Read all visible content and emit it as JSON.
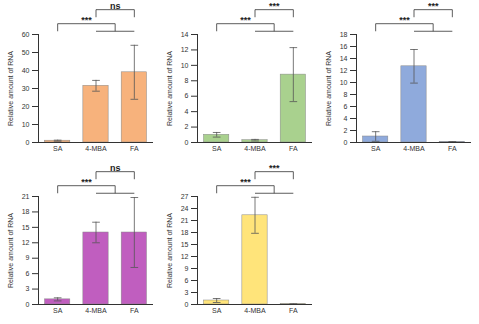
{
  "chart_data": [
    {
      "type": "bar",
      "y_label": "Relative amount of RNA",
      "categories": [
        "SA",
        "4-MBA",
        "FA"
      ],
      "values": [
        1,
        31.5,
        39
      ],
      "errors": [
        0.3,
        3,
        15
      ],
      "color": "#f7b27c",
      "ylim": [
        0,
        60
      ],
      "yticks": [
        0,
        10,
        20,
        30,
        40,
        50,
        60
      ],
      "significance": [
        {
          "between": [
            [
              "SA"
            ],
            [
              "4-MBA",
              "FA"
            ]
          ],
          "label": "***"
        },
        {
          "between": [
            [
              "4-MBA"
            ],
            [
              "FA"
            ]
          ],
          "label": "ns"
        }
      ]
    },
    {
      "type": "bar",
      "y_label": "Relative amount of RNA",
      "categories": [
        "SA",
        "4-MBA",
        "FA"
      ],
      "values": [
        1,
        0.3,
        8.8
      ],
      "errors": [
        0.3,
        0.1,
        3.5
      ],
      "color": "#a9d18e",
      "ylim": [
        0,
        14
      ],
      "yticks": [
        0,
        2,
        4,
        6,
        8,
        10,
        12,
        14
      ],
      "significance": [
        {
          "between": [
            [
              "SA"
            ],
            [
              "4-MBA",
              "FA"
            ]
          ],
          "label": "***"
        },
        {
          "between": [
            [
              "4-MBA"
            ],
            [
              "FA"
            ]
          ],
          "label": "***"
        }
      ]
    },
    {
      "type": "bar",
      "y_label": "Relative amount of RNA",
      "categories": [
        "SA",
        "4-MBA",
        "FA"
      ],
      "values": [
        1,
        12.7,
        0.1
      ],
      "errors": [
        0.8,
        2.8,
        0.05
      ],
      "color": "#8faadc",
      "ylim": [
        0,
        18
      ],
      "yticks": [
        0,
        2,
        4,
        6,
        8,
        10,
        12,
        14,
        16,
        18
      ],
      "significance": [
        {
          "between": [
            [
              "SA"
            ],
            [
              "4-MBA",
              "FA"
            ]
          ],
          "label": "***"
        },
        {
          "between": [
            [
              "4-MBA"
            ],
            [
              "FA"
            ]
          ],
          "label": "***"
        }
      ]
    },
    {
      "type": "bar",
      "y_label": "Relative amount of RNA",
      "categories": [
        "SA",
        "4-MBA",
        "FA"
      ],
      "values": [
        1,
        14,
        14
      ],
      "errors": [
        0.3,
        2,
        6.8
      ],
      "color": "#c05ebf",
      "ylim": [
        0,
        21
      ],
      "yticks": [
        0,
        3,
        6,
        9,
        12,
        15,
        18,
        21
      ],
      "significance": [
        {
          "between": [
            [
              "SA"
            ],
            [
              "4-MBA",
              "FA"
            ]
          ],
          "label": "***"
        },
        {
          "between": [
            [
              "4-MBA"
            ],
            [
              "FA"
            ]
          ],
          "label": "ns"
        }
      ]
    },
    {
      "type": "bar",
      "y_label": "Relative amount of RNA",
      "categories": [
        "SA",
        "4-MBA",
        "FA"
      ],
      "values": [
        1,
        22.3,
        0.1
      ],
      "errors": [
        0.5,
        4.5,
        0.05
      ],
      "color": "#ffe47a",
      "ylim": [
        0,
        27
      ],
      "yticks": [
        0,
        3,
        6,
        9,
        12,
        15,
        18,
        21,
        24,
        27
      ],
      "significance": [
        {
          "between": [
            [
              "SA"
            ],
            [
              "4-MBA",
              "FA"
            ]
          ],
          "label": "***"
        },
        {
          "between": [
            [
              "4-MBA"
            ],
            [
              "FA"
            ]
          ],
          "label": "***"
        }
      ]
    }
  ]
}
